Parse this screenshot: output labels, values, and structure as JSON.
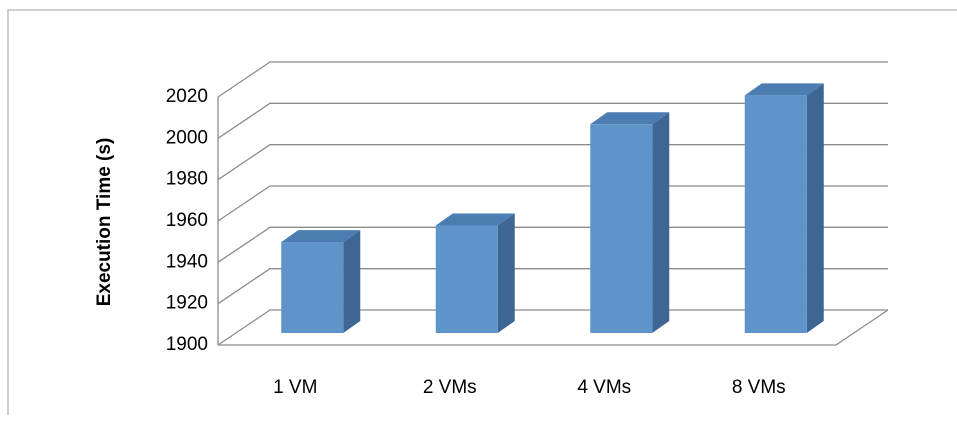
{
  "chart_data": {
    "type": "bar3d",
    "y_label": "Execution Time (s)",
    "categories": [
      "1 VM",
      "2 VMs",
      "4 VMs",
      "8 VMs"
    ],
    "values": [
      1944,
      1952,
      2001,
      2015
    ],
    "color": "#5f94cb",
    "side_color": "#3e6694",
    "top_color": "#4b7cb2",
    "ylim": [
      1900,
      2020
    ],
    "yticks": [
      1900,
      1920,
      1940,
      1960,
      1980,
      2000,
      2020
    ],
    "grid": true
  }
}
